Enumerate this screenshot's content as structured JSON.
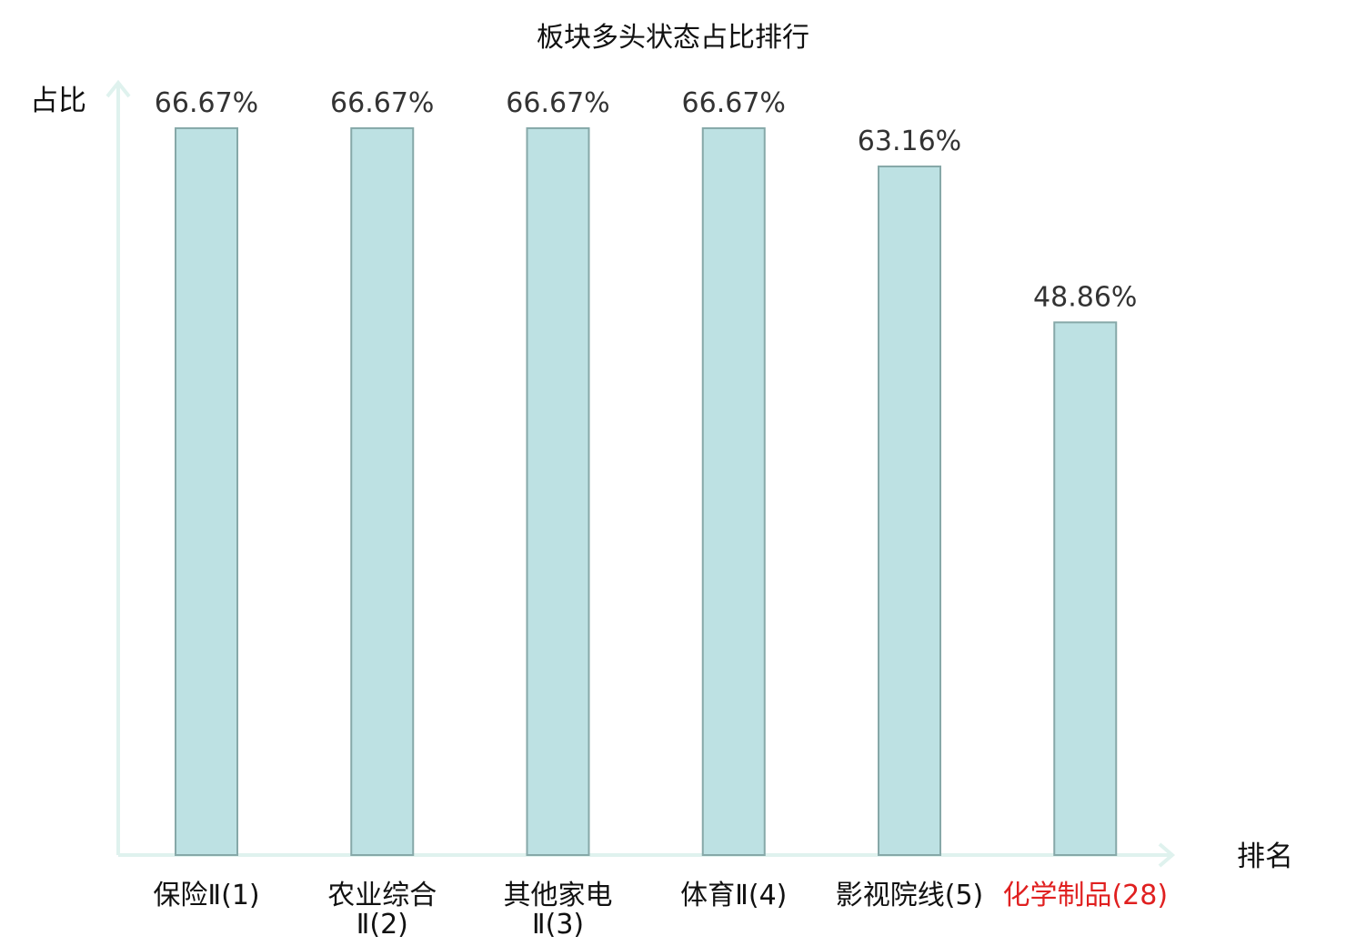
{
  "chart_data": {
    "type": "bar",
    "title": "板块多头状态占比排行",
    "ylabel": "占比",
    "xlabel": "排名",
    "ylim": [
      0,
      70
    ],
    "grid": false,
    "categories": [
      [
        "保险Ⅱ(1)"
      ],
      [
        "农业综合",
        "Ⅱ(2)"
      ],
      [
        "其他家电",
        "Ⅱ(3)"
      ],
      [
        "体育Ⅱ(4)"
      ],
      [
        "影视院线(5)"
      ],
      [
        "化学制品(28)"
      ]
    ],
    "values": [
      66.67,
      66.67,
      66.67,
      66.67,
      63.16,
      48.86
    ],
    "value_labels": [
      "66.67%",
      "66.67%",
      "66.67%",
      "66.67%",
      "63.16%",
      "48.86%"
    ],
    "highlight_index": 5,
    "colors": {
      "bar_fill": "#bde1e3",
      "bar_stroke": "#86a8a8",
      "axis": "#dff2ee",
      "highlight_text": "#e02020"
    }
  }
}
